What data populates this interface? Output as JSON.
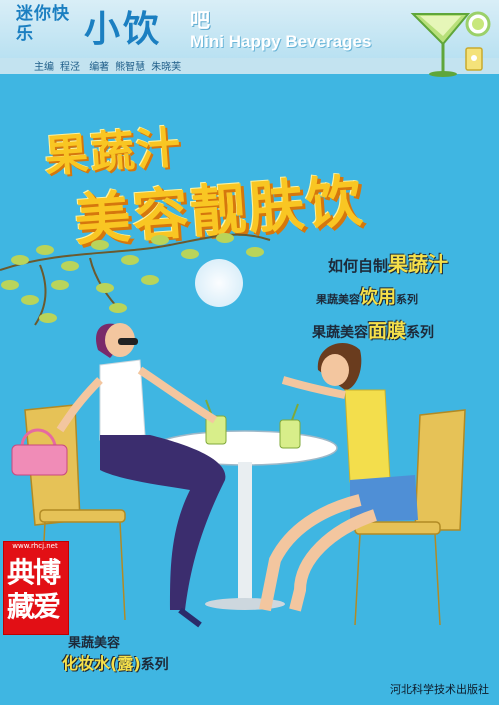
{
  "series": {
    "name_small": "迷你快乐",
    "name_big": "小饮",
    "name_bar": "吧",
    "name_en": "Mini Happy Beverages"
  },
  "credits": {
    "editor_role": "主编",
    "editor_name": "程泾",
    "authors_role": "编著",
    "author1": "熊智慧",
    "author2": "朱晓芙"
  },
  "title": {
    "line1": "果蔬汁",
    "line2": "美容靓肤饮"
  },
  "subtitles": {
    "s1_prefix": "如何自制",
    "s1_highlight": "果蔬汁",
    "s2_prefix": "果蔬美容",
    "s2_highlight": "饮用",
    "s2_suffix": "系列",
    "s3_prefix": "果蔬美容",
    "s3_highlight": "面膜",
    "s3_suffix": "系列"
  },
  "lower": {
    "line1": "果蔬美容",
    "line2_highlight": "化妆水(露)",
    "line2_suffix": "系列"
  },
  "stamp": {
    "url": "www.rhcj.net",
    "chars": "典博藏爱"
  },
  "publisher": "河北科学技术出版社",
  "colors": {
    "background": "#3fb6e2",
    "title_yellow": "#f9c623",
    "title_shadow": "#d5770d",
    "series_blue": "#1b7fc1",
    "stamp_red": "#e20f15"
  }
}
